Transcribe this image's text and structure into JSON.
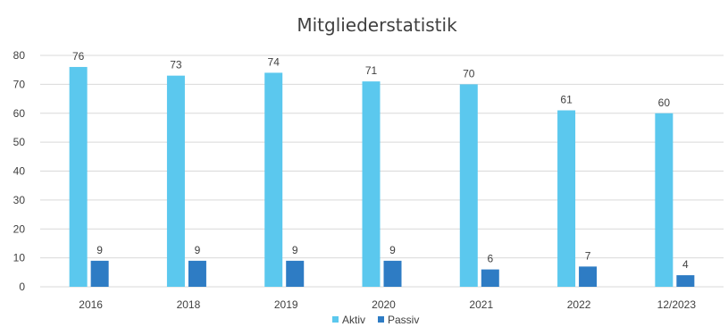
{
  "chart_data": {
    "type": "bar",
    "title": "Mitgliederstatistik",
    "categories": [
      "2016",
      "2018",
      "2019",
      "2020",
      "2021",
      "2022",
      "12/2023"
    ],
    "series": [
      {
        "name": "Aktiv",
        "values": [
          76,
          73,
          74,
          71,
          70,
          61,
          60
        ],
        "color": "#5bc8ee"
      },
      {
        "name": "Passiv",
        "values": [
          9,
          9,
          9,
          9,
          6,
          7,
          4
        ],
        "color": "#2e7cc4"
      }
    ],
    "ylim": [
      0,
      80
    ],
    "yticks": [
      "0",
      "10",
      "20",
      "30",
      "40",
      "50",
      "60",
      "70",
      "80"
    ],
    "grid": true,
    "legend": "bottom-center",
    "data_labels": true
  }
}
